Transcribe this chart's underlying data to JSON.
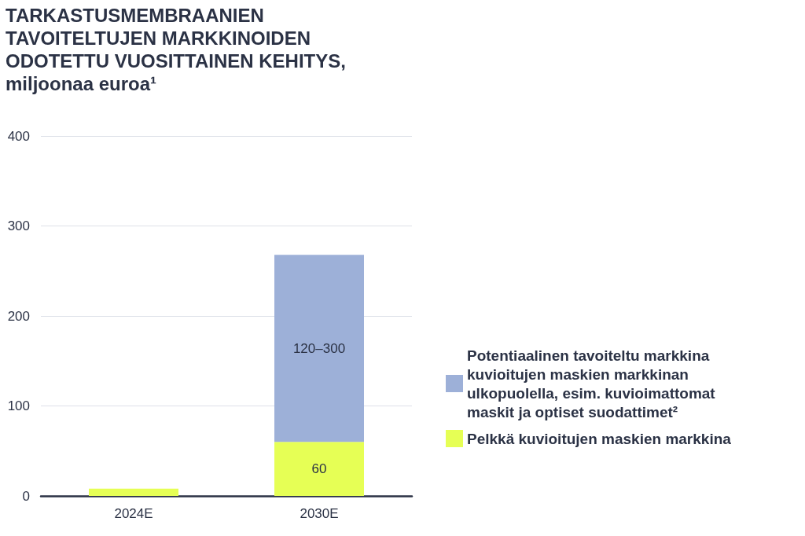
{
  "chart_data": {
    "type": "bar",
    "title": "TARKASTUSMEMBRAANIEN TAVOITELTUJEN MARKKINOIDEN ODOTETTU VUOSITTAINEN KEHITYS, miljoonaa euroa¹",
    "categories": [
      "2024E",
      "2030E"
    ],
    "stacked": true,
    "series": [
      {
        "name": "Pelkkä kuvioitujen maskien markkina",
        "color": "#e6ff55",
        "values": [
          8,
          60
        ],
        "value_labels": [
          null,
          "60"
        ]
      },
      {
        "name": "Potentiaalinen tavoiteltu markkina kuvioitujen maskien markkinan ulkopuolella, esim. kuvioimattomat maskit ja optiset suodattimet²",
        "color": "#9db0d8",
        "values": [
          null,
          208
        ],
        "value_labels": [
          null,
          "120–300"
        ]
      }
    ],
    "ylim": [
      0,
      400
    ],
    "yticks": [
      0,
      100,
      200,
      300,
      400
    ],
    "grid": "y",
    "legend": "right"
  }
}
